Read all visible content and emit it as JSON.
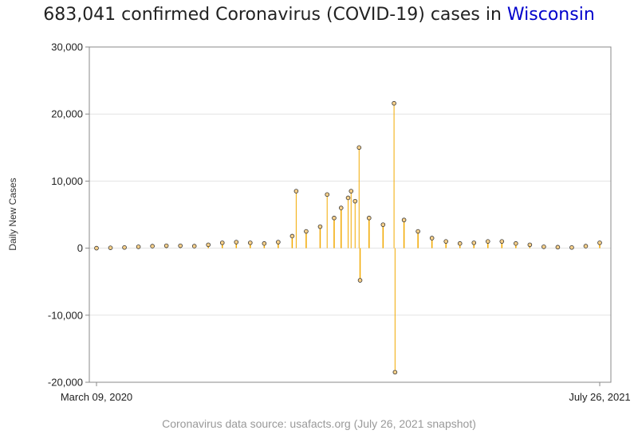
{
  "page": {
    "title_prefix": "683,041 confirmed Coronavirus (COVID-19) cases in ",
    "title_place": "Wisconsin",
    "source": "Coronavirus data source: usafacts.org (July 26, 2021 snapshot)"
  },
  "colors": {
    "bar": "#f2a900",
    "bar_fill": "#fbc04a",
    "marker_fill": "#f7d08a",
    "marker_stroke": "#333333",
    "title_place": "#0000cc"
  },
  "chart_data": {
    "type": "bar",
    "title": "683,041 confirmed Coronavirus (COVID-19) cases in Wisconsin",
    "ylabel": "Daily New Cases",
    "xlabel": "",
    "ylim": [
      -20000,
      30000
    ],
    "yticks": [
      -20000,
      -10000,
      0,
      10000,
      20000,
      30000
    ],
    "ytick_labels": [
      "-20,000",
      "-10,000",
      "0",
      "10,000",
      "20,000",
      "30,000"
    ],
    "xlim": [
      "2020-03-09",
      "2021-07-26"
    ],
    "xtick_labels": [
      "March 09, 2020",
      "July 26, 2021"
    ],
    "grid": "horizontal",
    "points": [
      {
        "date": "2020-03-09",
        "value": 0
      },
      {
        "date": "2020-03-23",
        "value": 50
      },
      {
        "date": "2020-04-06",
        "value": 100
      },
      {
        "date": "2020-04-20",
        "value": 200
      },
      {
        "date": "2020-05-04",
        "value": 300
      },
      {
        "date": "2020-05-18",
        "value": 350
      },
      {
        "date": "2020-06-01",
        "value": 350
      },
      {
        "date": "2020-06-15",
        "value": 300
      },
      {
        "date": "2020-06-29",
        "value": 500
      },
      {
        "date": "2020-07-13",
        "value": 800
      },
      {
        "date": "2020-07-27",
        "value": 900
      },
      {
        "date": "2020-08-10",
        "value": 800
      },
      {
        "date": "2020-08-24",
        "value": 700
      },
      {
        "date": "2020-09-07",
        "value": 900
      },
      {
        "date": "2020-09-21",
        "value": 1800
      },
      {
        "date": "2020-09-25",
        "value": 8500
      },
      {
        "date": "2020-10-05",
        "value": 2500
      },
      {
        "date": "2020-10-19",
        "value": 3200
      },
      {
        "date": "2020-10-26",
        "value": 8000
      },
      {
        "date": "2020-11-02",
        "value": 4500
      },
      {
        "date": "2020-11-09",
        "value": 6000
      },
      {
        "date": "2020-11-16",
        "value": 7500
      },
      {
        "date": "2020-11-19",
        "value": 8500
      },
      {
        "date": "2020-11-23",
        "value": 7000
      },
      {
        "date": "2020-11-27",
        "value": 15000
      },
      {
        "date": "2020-11-28",
        "value": -4800
      },
      {
        "date": "2020-12-07",
        "value": 4500
      },
      {
        "date": "2020-12-21",
        "value": 3500
      },
      {
        "date": "2021-01-01",
        "value": 21600
      },
      {
        "date": "2021-01-02",
        "value": -18500
      },
      {
        "date": "2021-01-11",
        "value": 4200
      },
      {
        "date": "2021-01-25",
        "value": 2500
      },
      {
        "date": "2021-02-08",
        "value": 1500
      },
      {
        "date": "2021-02-22",
        "value": 1000
      },
      {
        "date": "2021-03-08",
        "value": 700
      },
      {
        "date": "2021-03-22",
        "value": 800
      },
      {
        "date": "2021-04-05",
        "value": 1000
      },
      {
        "date": "2021-04-19",
        "value": 1000
      },
      {
        "date": "2021-05-03",
        "value": 700
      },
      {
        "date": "2021-05-17",
        "value": 500
      },
      {
        "date": "2021-05-31",
        "value": 200
      },
      {
        "date": "2021-06-14",
        "value": 150
      },
      {
        "date": "2021-06-28",
        "value": 100
      },
      {
        "date": "2021-07-12",
        "value": 300
      },
      {
        "date": "2021-07-26",
        "value": 800
      }
    ]
  }
}
